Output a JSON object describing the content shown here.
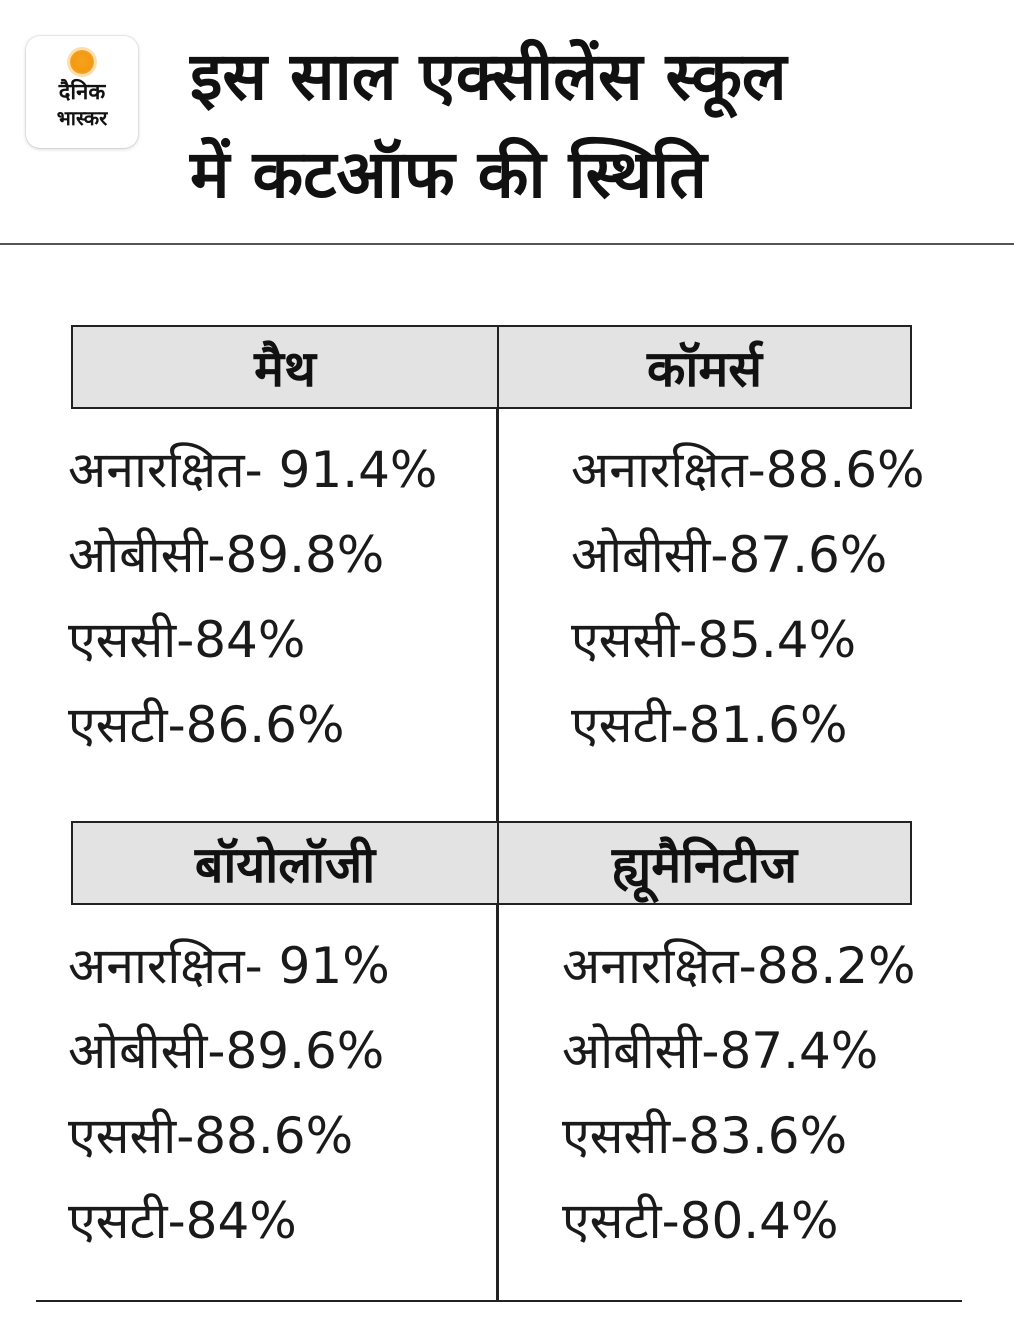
{
  "logo": {
    "line1": "दैनिक",
    "line2": "भास्कर",
    "sun_color": "#f7a21b"
  },
  "headline": {
    "line1": "इस साल एक्सीलेंस स्कूल",
    "line2": "में कटऑफ की स्थिति"
  },
  "sections": {
    "math": {
      "title": "मैथ",
      "items": [
        "अनारक्षित- 91.4%",
        "ओबीसी-89.8%",
        "एससी-84%",
        "एसटी-86.6%"
      ]
    },
    "commerce": {
      "title": "कॉमर्स",
      "items": [
        "अनारक्षित-88.6%",
        "ओबीसी-87.6%",
        "एससी-85.4%",
        "एसटी-81.6%"
      ]
    },
    "biology": {
      "title": "बॉयोलॉजी",
      "items": [
        "अनारक्षित- 91%",
        "ओबीसी-89.6%",
        "एससी-88.6%",
        "एसटी-84%"
      ]
    },
    "humanities": {
      "title": "ह्यूमैनिटीज",
      "items": [
        "अनारक्षित-88.2%",
        "ओबीसी-87.4%",
        "एससी-83.6%",
        "एसटी-80.4%"
      ]
    }
  },
  "colors": {
    "header_bg": "#e3e3e3",
    "text": "#1a1a1a",
    "logo_accent": "#f7a21b"
  }
}
